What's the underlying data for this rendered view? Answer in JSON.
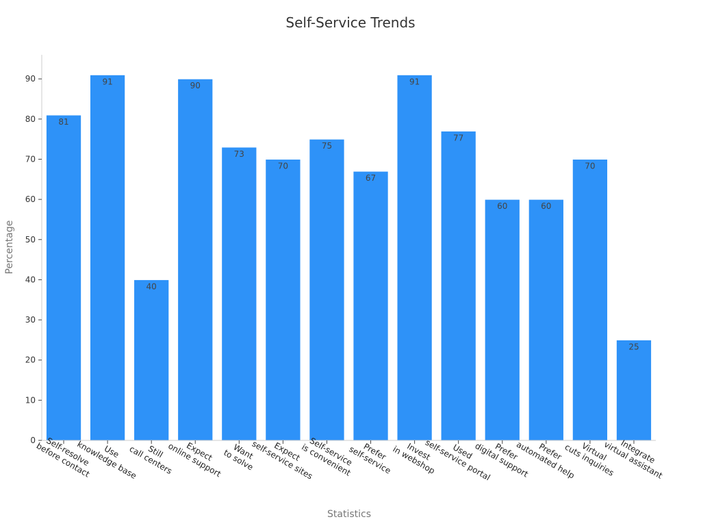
{
  "chart_data": {
    "type": "bar",
    "title": "Self-Service Trends",
    "xlabel": "Statistics",
    "ylabel": "Percentage",
    "ylim": [
      0,
      96
    ],
    "yticks": [
      0,
      10,
      20,
      30,
      40,
      50,
      60,
      70,
      80,
      90
    ],
    "grid": false,
    "legend": "none",
    "bar_color": "#2e92f8",
    "categories": [
      [
        "Self-resolve",
        "before contact"
      ],
      [
        "Use",
        "knowledge base"
      ],
      [
        "Still",
        "call centers"
      ],
      [
        "Expect",
        "online support"
      ],
      [
        "Want",
        "to solve"
      ],
      [
        "Expect",
        "self-service sites"
      ],
      [
        "Self-service",
        "is convenient"
      ],
      [
        "Prefer",
        "self-service"
      ],
      [
        "Invest",
        "in webshop"
      ],
      [
        "Used",
        "self-service portal"
      ],
      [
        "Prefer",
        "digital support"
      ],
      [
        "Prefer",
        "automated help"
      ],
      [
        "Virtual",
        "cuts inquiries"
      ],
      [
        "Integrate",
        "virtual assistant"
      ]
    ],
    "values": [
      81,
      91,
      40,
      90,
      73,
      70,
      75,
      67,
      91,
      77,
      60,
      60,
      70,
      25
    ]
  }
}
